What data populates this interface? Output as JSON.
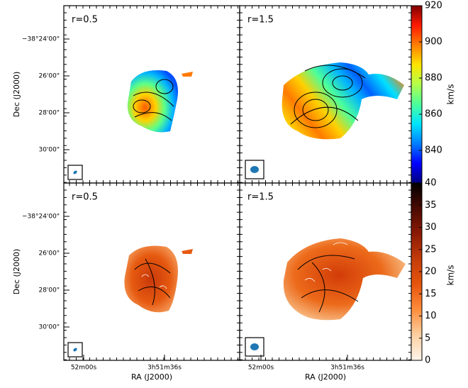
{
  "chart_data": [
    {
      "type": "map",
      "label": "r=0.5",
      "ylabel": "Dec (J2000)",
      "yticks": [
        "−38°24'00\"",
        "26'00\"",
        "28'00\"",
        "30'00\""
      ]
    },
    {
      "type": "map",
      "label": "r=1.5",
      "colorbar": {
        "label": "km/s",
        "lim": [
          822,
          920
        ],
        "ticks": [
          840,
          860,
          880,
          900,
          920
        ],
        "colors": [
          "#00007f",
          "#0000ff",
          "#007fff",
          "#00e5ff",
          "#4cff9b",
          "#b2ff4c",
          "#ffe500",
          "#ff7f00",
          "#ff1a00",
          "#7f0000"
        ]
      }
    },
    {
      "type": "map",
      "label": "r=0.5",
      "ylabel": "Dec (J2000)",
      "xlabel": "RA (J2000)",
      "yticks": [
        "−38°24'00\"",
        "26'00\"",
        "28'00\"",
        "30'00\""
      ],
      "xticks": [
        "52m00s",
        "3h51m36s"
      ]
    },
    {
      "type": "map",
      "label": "r=1.5",
      "xlabel": "RA (J2000)",
      "xticks": [
        "52m00s",
        "3h51m36s"
      ],
      "colorbar": {
        "label": "km/s",
        "lim": [
          0,
          40
        ],
        "ticks": [
          0,
          5,
          10,
          15,
          20,
          25,
          30,
          35,
          40
        ],
        "colors": [
          "#fff5eb",
          "#fdd0a2",
          "#fd8d3c",
          "#e6550d",
          "#c43c0a",
          "#8b1a04",
          "#4a0a02",
          "#000000"
        ]
      }
    }
  ]
}
